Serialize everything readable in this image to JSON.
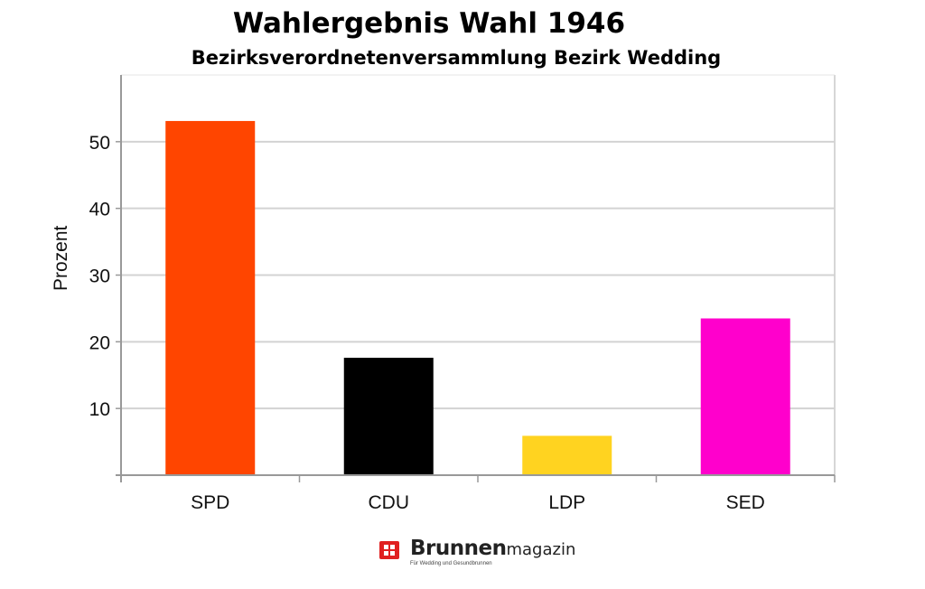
{
  "chart_data": {
    "type": "bar",
    "title": "Wahlergebnis Wahl 1946",
    "subtitle": "Bezirksverordnetenversammlung Bezirk Wedding",
    "xlabel": "",
    "ylabel": "Prozent",
    "categories": [
      "SPD",
      "CDU",
      "LDP",
      "SED"
    ],
    "values": [
      53.1,
      17.6,
      5.9,
      23.5
    ],
    "colors": [
      "#ff4500",
      "#000000",
      "#ffd320",
      "#ff00cc"
    ],
    "ylim": [
      0,
      60
    ],
    "yticks": [
      10,
      20,
      30,
      40,
      50
    ],
    "grid": true
  },
  "logo": {
    "brand_bold": "Brunnen",
    "brand_light": "magazin",
    "tagline": "Für Wedding und Gesundbrunnen"
  }
}
